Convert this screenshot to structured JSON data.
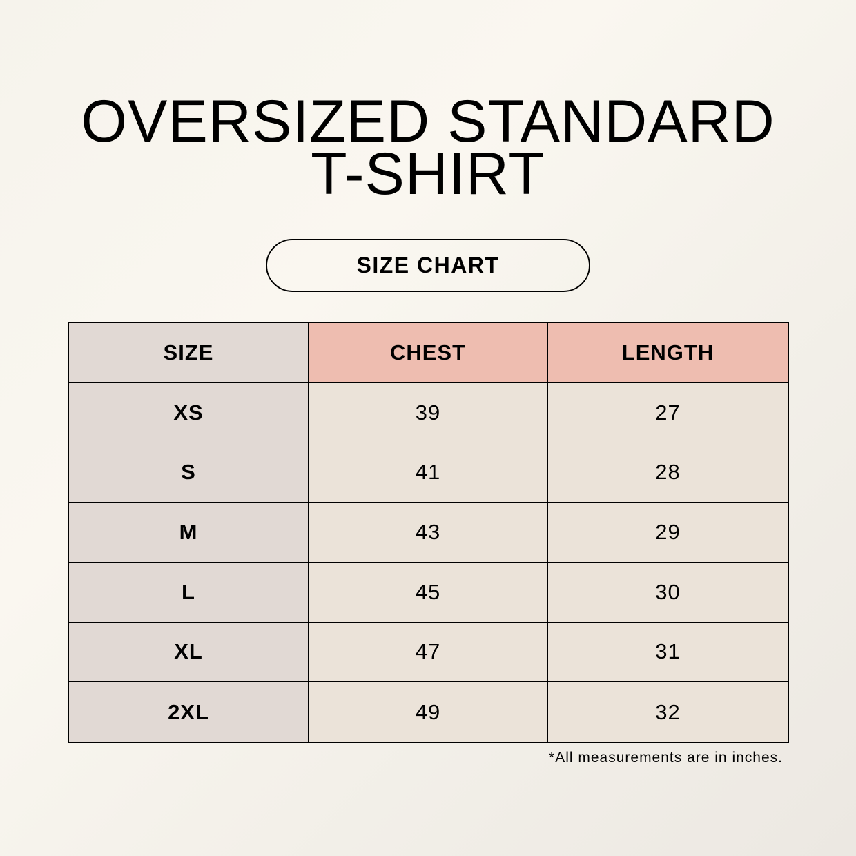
{
  "title": {
    "line1": "OVERSIZED STANDARD",
    "line2": "T-SHIRT"
  },
  "subtitle_pill": "SIZE CHART",
  "colors": {
    "background": "#f8f5ee",
    "size_column": "#e1d9d4",
    "header_highlight": "#eebdb0",
    "value_cells": "#ebe3d9",
    "border": "#000000"
  },
  "table": {
    "headers": [
      "SIZE",
      "CHEST",
      "LENGTH"
    ],
    "rows": [
      [
        "XS",
        "39",
        "27"
      ],
      [
        "S",
        "41",
        "28"
      ],
      [
        "M",
        "43",
        "29"
      ],
      [
        "L",
        "45",
        "30"
      ],
      [
        "XL",
        "47",
        "31"
      ],
      [
        "2XL",
        "49",
        "32"
      ]
    ]
  },
  "footnote": "*All measurements are in inches."
}
